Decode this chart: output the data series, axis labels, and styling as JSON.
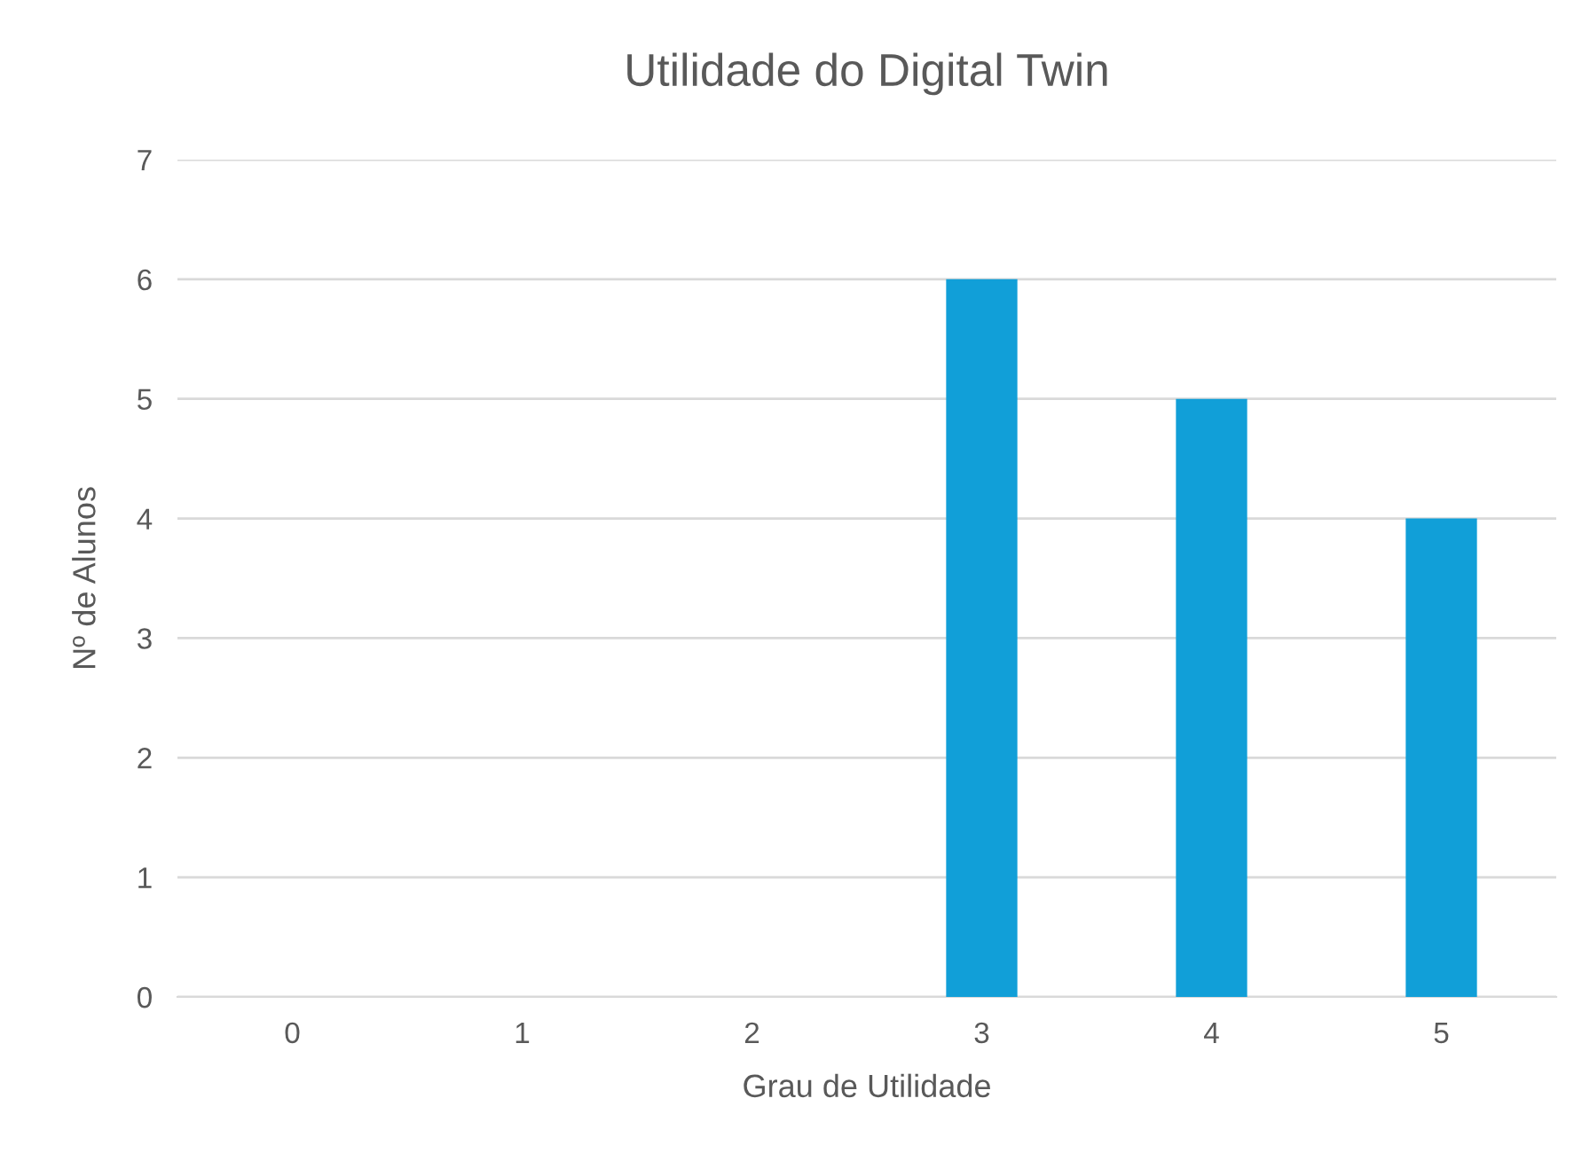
{
  "chart_data": {
    "type": "bar",
    "title": "Utilidade do Digital Twin",
    "xlabel": "Grau de Utilidade",
    "ylabel": "Nº de Alunos",
    "categories": [
      "0",
      "1",
      "2",
      "3",
      "4",
      "5"
    ],
    "values": [
      0,
      0,
      0,
      6,
      5,
      4
    ],
    "color": "#119fd8",
    "ylim": [
      0,
      7
    ],
    "yticks": [
      0,
      1,
      2,
      3,
      4,
      5,
      6,
      7
    ],
    "grid": "y",
    "legend": false
  }
}
